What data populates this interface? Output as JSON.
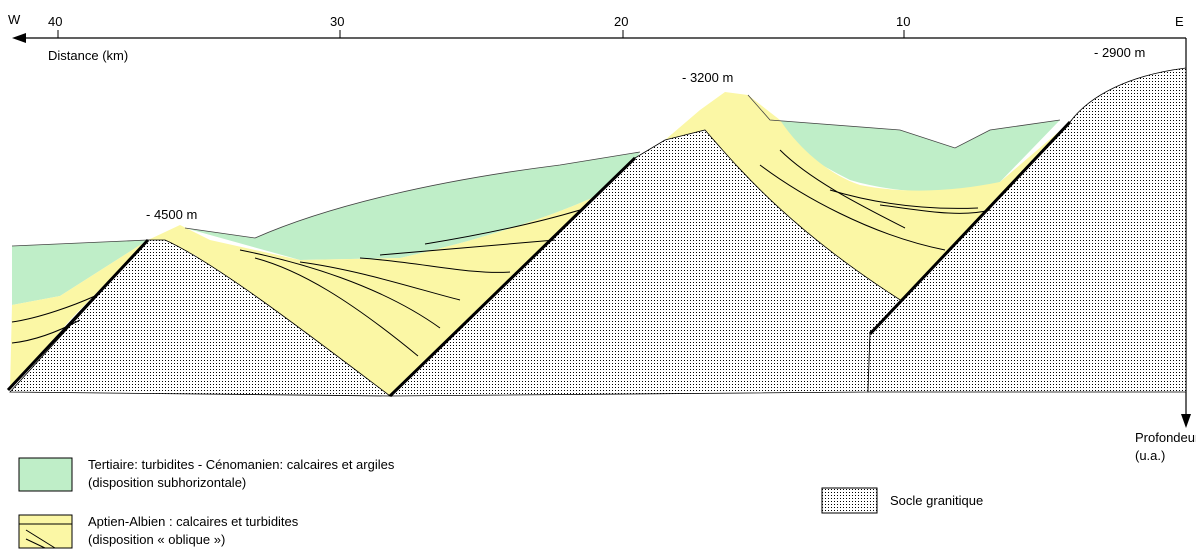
{
  "axis": {
    "west_label": "W",
    "east_label": "E",
    "distance_ticks": [
      "40",
      "30",
      "20",
      "10"
    ],
    "distance_label": "Distance (km)",
    "depth_label_line1": "Profondeur",
    "depth_label_line2": "(u.a.)"
  },
  "annotations": {
    "peak_west": "- 4500 m",
    "peak_center": "- 3200 m",
    "peak_east": "- 2900 m"
  },
  "legend": {
    "tertiary_line1": "Tertiaire: turbidites - Cénomanien: calcaires et argiles",
    "tertiary_line2": "(disposition subhorizontale)",
    "aptian_line1": "Aptien-Albien : calcaires et turbidites",
    "aptian_line2": "(disposition « oblique »)",
    "socle": "Socle granitique"
  },
  "colors": {
    "tertiary": "#bfeec8",
    "aptian": "#fbf7a5",
    "socle_dots": "#000000",
    "line": "#000000"
  }
}
